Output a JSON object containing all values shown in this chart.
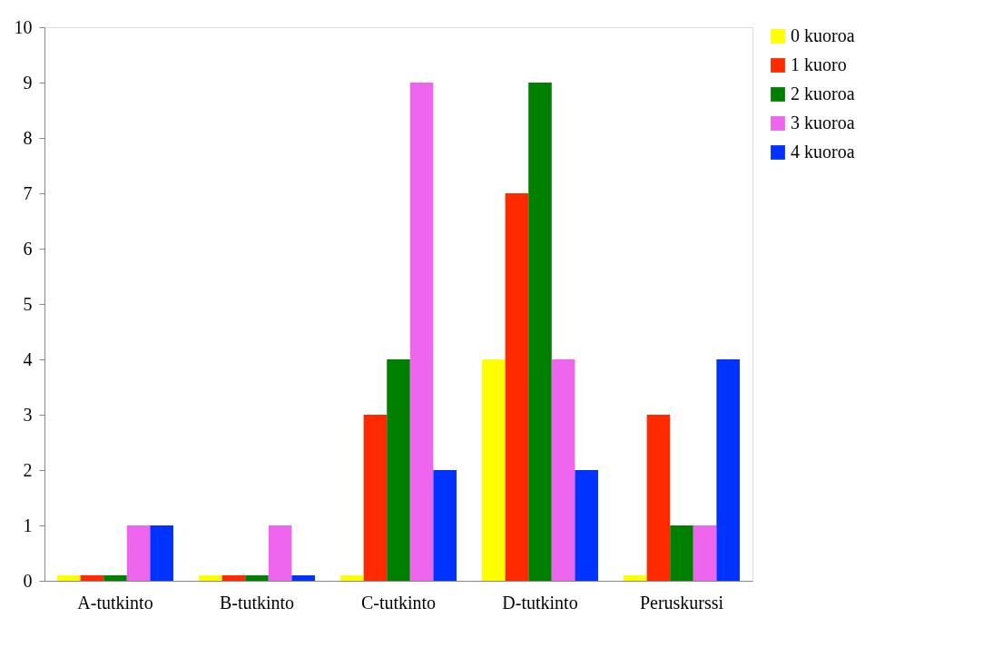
{
  "chart_data": {
    "type": "bar",
    "categories": [
      "A-tutkinto",
      "B-tutkinto",
      "C-tutkinto",
      "D-tutkinto",
      "Peruskurssi"
    ],
    "series": [
      {
        "name": "0 kuoroa",
        "color": "#ffff00",
        "values": [
          0.1,
          0.1,
          0.1,
          4,
          0.1
        ]
      },
      {
        "name": "1 kuoro",
        "color": "#ff2a00",
        "values": [
          0.1,
          0.1,
          3,
          7,
          3
        ]
      },
      {
        "name": "2 kuoroa",
        "color": "#008000",
        "values": [
          0.1,
          0.1,
          4,
          9,
          1
        ]
      },
      {
        "name": "3 kuoroa",
        "color": "#ee66ee",
        "values": [
          1,
          1,
          9,
          4,
          1
        ]
      },
      {
        "name": "4 kuoroa",
        "color": "#0033ff",
        "values": [
          1,
          0.1,
          2,
          2,
          4
        ]
      }
    ],
    "ylim": [
      0,
      10
    ],
    "yticks": [
      0,
      1,
      2,
      3,
      4,
      5,
      6,
      7,
      8,
      9,
      10
    ],
    "grid": false,
    "legend": "right"
  }
}
